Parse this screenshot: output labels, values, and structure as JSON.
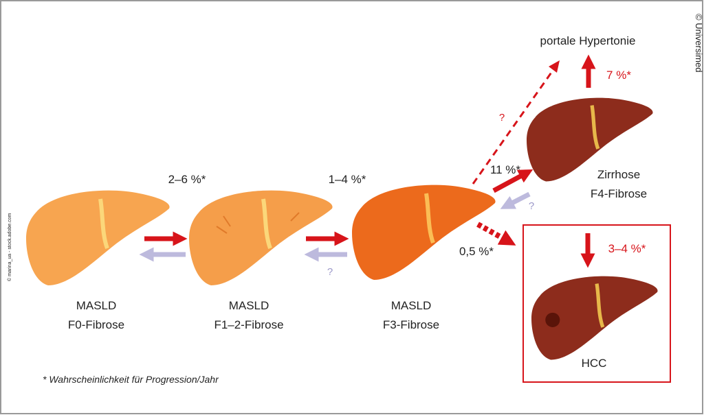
{
  "stages": [
    {
      "name": "MASLD",
      "grade": "F0-Fibrose"
    },
    {
      "name": "MASLD",
      "grade": "F1–2-Fibrose"
    },
    {
      "name": "MASLD",
      "grade": "F3-Fibrose"
    },
    {
      "name": "Zirrhose",
      "grade": "F4-Fibrose"
    },
    {
      "name": "HCC"
    }
  ],
  "outcome": "portale Hypertonie",
  "transitions": [
    {
      "label": "2–6 %*"
    },
    {
      "label": "1–4 %*",
      "reverse_label": "?"
    },
    {
      "label": "11 %*",
      "reverse_label": "?"
    },
    {
      "label": "0,5 %*"
    },
    {
      "label": "?"
    },
    {
      "label": "7 %*"
    },
    {
      "label": "3–4 %*"
    }
  ],
  "footnote": "* Wahrscheinlichkeit für Progression/Jahr",
  "credit": "© Universimed",
  "image_credit": "© marina_ua - stock.adobe.com"
}
